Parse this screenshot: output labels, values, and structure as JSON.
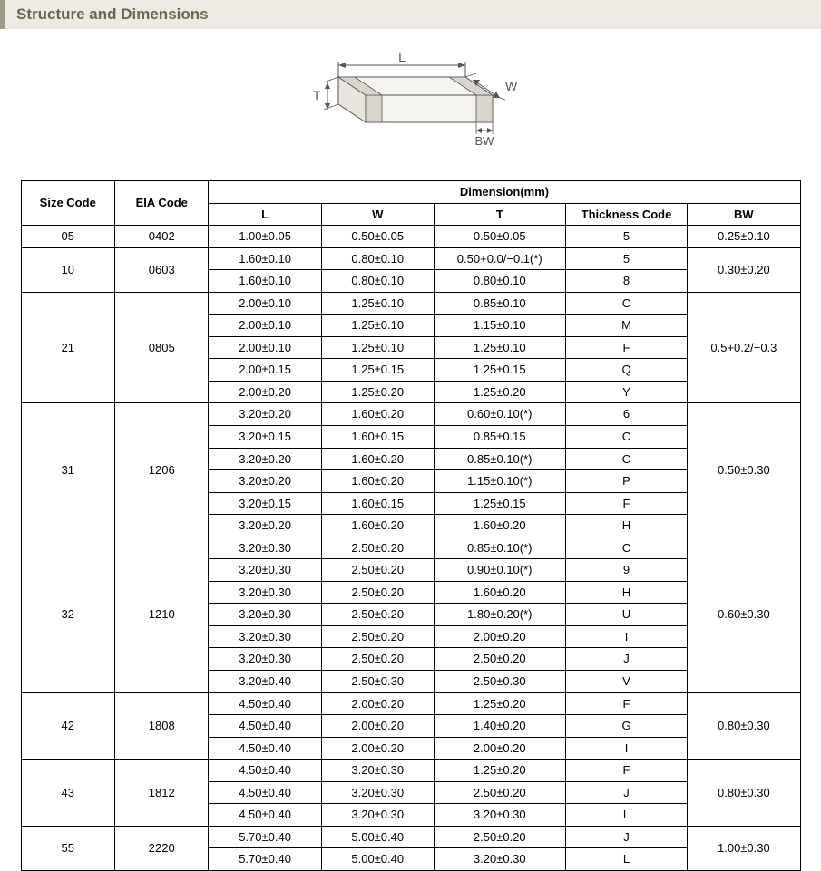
{
  "title": "Structure and Dimensions",
  "diagram": {
    "labels": {
      "L": "L",
      "W": "W",
      "T": "T",
      "BW": "BW"
    },
    "stroke": "#555555",
    "fill": "#f6f4f0",
    "text_color": "#6b6552",
    "font_size": 14
  },
  "table": {
    "header": {
      "size_code": "Size Code",
      "eia_code": "EIA Code",
      "dimension_group": "Dimension(mm)",
      "L": "L",
      "W": "W",
      "T": "T",
      "thickness_code": "Thickness Code",
      "BW": "BW"
    },
    "groups": [
      {
        "size_code": "05",
        "eia_code": "0402",
        "bw": "0.25±0.10",
        "rows": [
          {
            "L": "1.00±0.05",
            "W": "0.50±0.05",
            "T": "0.50±0.05",
            "tc": "5"
          }
        ]
      },
      {
        "size_code": "10",
        "eia_code": "0603",
        "bw": "0.30±0.20",
        "rows": [
          {
            "L": "1.60±0.10",
            "W": "0.80±0.10",
            "T": "0.50+0.0/−0.1(*)",
            "tc": "5"
          },
          {
            "L": "1.60±0.10",
            "W": "0.80±0.10",
            "T": "0.80±0.10",
            "tc": "8"
          }
        ]
      },
      {
        "size_code": "21",
        "eia_code": "0805",
        "bw": "0.5+0.2/−0.3",
        "rows": [
          {
            "L": "2.00±0.10",
            "W": "1.25±0.10",
            "T": "0.85±0.10",
            "tc": "C"
          },
          {
            "L": "2.00±0.10",
            "W": "1.25±0.10",
            "T": "1.15±0.10",
            "tc": "M"
          },
          {
            "L": "2.00±0.10",
            "W": "1.25±0.10",
            "T": "1.25±0.10",
            "tc": "F"
          },
          {
            "L": "2.00±0.15",
            "W": "1.25±0.15",
            "T": "1.25±0.15",
            "tc": "Q"
          },
          {
            "L": "2.00±0.20",
            "W": "1.25±0.20",
            "T": "1.25±0.20",
            "tc": "Y"
          }
        ]
      },
      {
        "size_code": "31",
        "eia_code": "1206",
        "bw": "0.50±0.30",
        "rows": [
          {
            "L": "3.20±0.20",
            "W": "1.60±0.20",
            "T": "0.60±0.10(*)",
            "tc": "6"
          },
          {
            "L": "3.20±0.15",
            "W": "1.60±0.15",
            "T": "0.85±0.15",
            "tc": "C"
          },
          {
            "L": "3.20±0.20",
            "W": "1.60±0.20",
            "T": "0.85±0.10(*)",
            "tc": "C"
          },
          {
            "L": "3.20±0.20",
            "W": "1.60±0.20",
            "T": "1.15±0.10(*)",
            "tc": "P"
          },
          {
            "L": "3.20±0.15",
            "W": "1.60±0.15",
            "T": "1.25±0.15",
            "tc": "F"
          },
          {
            "L": "3.20±0.20",
            "W": "1.60±0.20",
            "T": "1.60±0.20",
            "tc": "H"
          }
        ]
      },
      {
        "size_code": "32",
        "eia_code": "1210",
        "bw": "0.60±0.30",
        "rows": [
          {
            "L": "3.20±0.30",
            "W": "2.50±0.20",
            "T": "0.85±0.10(*)",
            "tc": "C"
          },
          {
            "L": "3.20±0.30",
            "W": "2.50±0.20",
            "T": "0.90±0.10(*)",
            "tc": "9"
          },
          {
            "L": "3.20±0.30",
            "W": "2.50±0.20",
            "T": "1.60±0.20",
            "tc": "H"
          },
          {
            "L": "3.20±0.30",
            "W": "2.50±0.20",
            "T": "1.80±0.20(*)",
            "tc": "U"
          },
          {
            "L": "3.20±0.30",
            "W": "2.50±0.20",
            "T": "2.00±0.20",
            "tc": "I"
          },
          {
            "L": "3.20±0.30",
            "W": "2.50±0.20",
            "T": "2.50±0.20",
            "tc": "J"
          },
          {
            "L": "3.20±0.40",
            "W": "2.50±0.30",
            "T": "2.50±0.30",
            "tc": "V"
          }
        ]
      },
      {
        "size_code": "42",
        "eia_code": "1808",
        "bw": "0.80±0.30",
        "rows": [
          {
            "L": "4.50±0.40",
            "W": "2.00±0.20",
            "T": "1.25±0.20",
            "tc": "F"
          },
          {
            "L": "4.50±0.40",
            "W": "2.00±0.20",
            "T": "1.40±0.20",
            "tc": "G"
          },
          {
            "L": "4.50±0.40",
            "W": "2.00±0.20",
            "T": "2.00±0.20",
            "tc": "I"
          }
        ]
      },
      {
        "size_code": "43",
        "eia_code": "1812",
        "bw": "0.80±0.30",
        "rows": [
          {
            "L": "4.50±0.40",
            "W": "3.20±0.30",
            "T": "1.25±0.20",
            "tc": "F"
          },
          {
            "L": "4.50±0.40",
            "W": "3.20±0.30",
            "T": "2.50±0.20",
            "tc": "J"
          },
          {
            "L": "4.50±0.40",
            "W": "3.20±0.30",
            "T": "3.20±0.30",
            "tc": "L"
          }
        ]
      },
      {
        "size_code": "55",
        "eia_code": "2220",
        "bw": "1.00±0.30",
        "rows": [
          {
            "L": "5.70±0.40",
            "W": "5.00±0.40",
            "T": "2.50±0.20",
            "tc": "J"
          },
          {
            "L": "5.70±0.40",
            "W": "5.00±0.40",
            "T": "3.20±0.30",
            "tc": "L"
          }
        ]
      }
    ],
    "border_color": "#000000",
    "font_size": 13
  }
}
